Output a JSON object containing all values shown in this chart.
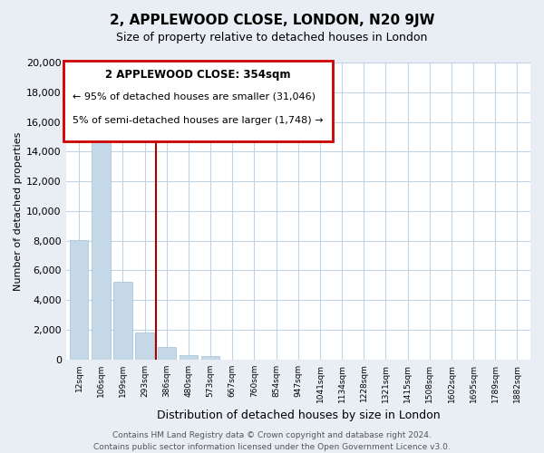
{
  "title": "2, APPLEWOOD CLOSE, LONDON, N20 9JW",
  "subtitle": "Size of property relative to detached houses in London",
  "xlabel": "Distribution of detached houses by size in London",
  "ylabel": "Number of detached properties",
  "bar_labels": [
    "12sqm",
    "106sqm",
    "199sqm",
    "293sqm",
    "386sqm",
    "480sqm",
    "573sqm",
    "667sqm",
    "760sqm",
    "854sqm",
    "947sqm",
    "1041sqm",
    "1134sqm",
    "1228sqm",
    "1321sqm",
    "1415sqm",
    "1508sqm",
    "1602sqm",
    "1695sqm",
    "1789sqm",
    "1882sqm"
  ],
  "bar_values": [
    8050,
    16600,
    5250,
    1800,
    820,
    280,
    200,
    0,
    0,
    0,
    0,
    0,
    0,
    0,
    0,
    0,
    0,
    0,
    0,
    0,
    0
  ],
  "bar_color": "#c5d8e8",
  "bar_edge_color": "#a0c0dc",
  "vline_position": 3.5,
  "vline_color": "#aa0000",
  "ylim": [
    0,
    20000
  ],
  "yticks": [
    0,
    2000,
    4000,
    6000,
    8000,
    10000,
    12000,
    14000,
    16000,
    18000,
    20000
  ],
  "annotation_title": "2 APPLEWOOD CLOSE: 354sqm",
  "annotation_line1": "← 95% of detached houses are smaller (31,046)",
  "annotation_line2": "5% of semi-detached houses are larger (1,748) →",
  "annotation_box_color": "#cc0000",
  "footer_line1": "Contains HM Land Registry data © Crown copyright and database right 2024.",
  "footer_line2": "Contains public sector information licensed under the Open Government Licence v3.0.",
  "bg_color": "#e8eef4",
  "plot_bg_color": "#ffffff",
  "grid_color": "#c0d4e8",
  "title_fontsize": 11,
  "subtitle_fontsize": 9
}
